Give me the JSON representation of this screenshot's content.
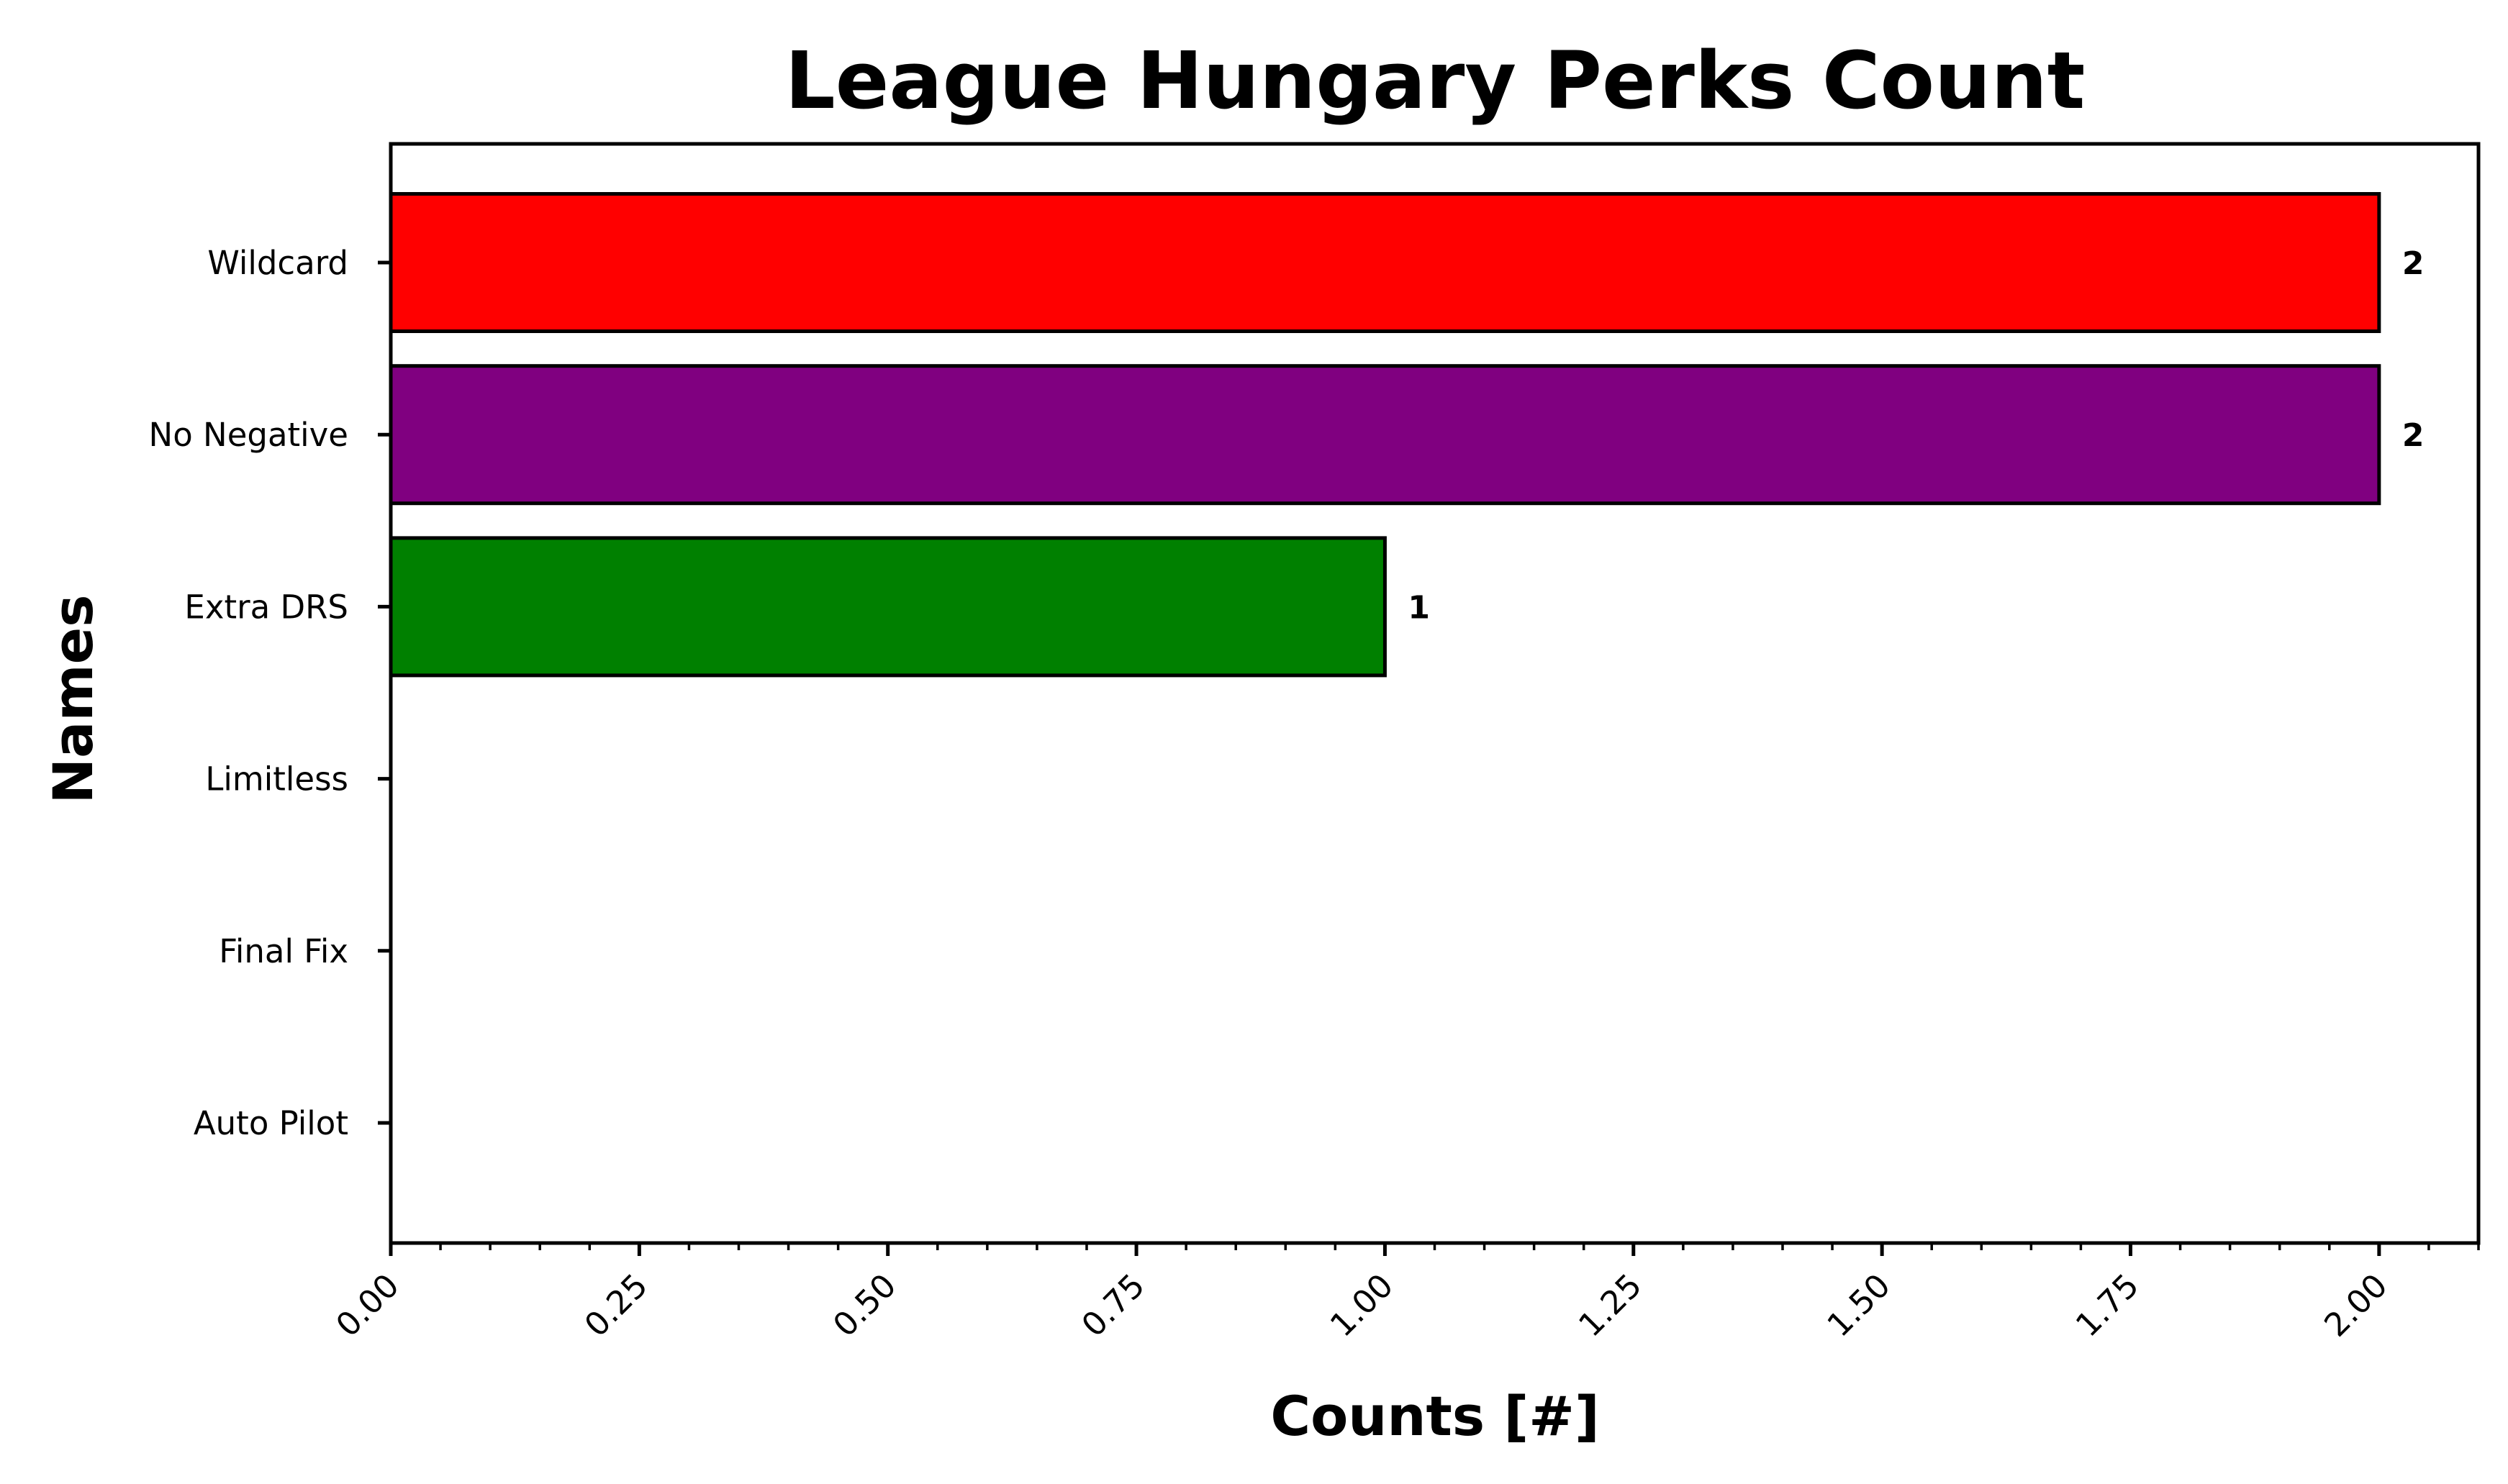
{
  "chart_data": {
    "type": "bar",
    "orientation": "horizontal",
    "title": "League Hungary Perks Count",
    "xlabel": "Counts [#]",
    "ylabel": "Names",
    "categories": [
      "Wildcard",
      "No Negative",
      "Extra DRS",
      "Limitless",
      "Final Fix",
      "Auto Pilot"
    ],
    "values": [
      2,
      2,
      1,
      0,
      0,
      0
    ],
    "data_labels": [
      "2",
      "2",
      "1",
      "",
      "",
      ""
    ],
    "colors": [
      "#ff0000",
      "#800080",
      "#008000",
      "#0000ff",
      "#ffa500",
      "#ffc0cb"
    ],
    "xlim": [
      0,
      2.1
    ],
    "xticks": [
      0,
      0.25,
      0.5,
      0.75,
      1.0,
      1.25,
      1.5,
      1.75,
      2.0
    ],
    "xtick_labels": [
      "0.00",
      "0.25",
      "0.50",
      "0.75",
      "1.00",
      "1.25",
      "1.50",
      "1.75",
      "2.00"
    ],
    "xtick_rotation": 45,
    "minor_ticks": true,
    "grid": false,
    "legend": "none",
    "bar_edge_color": "#000000"
  }
}
